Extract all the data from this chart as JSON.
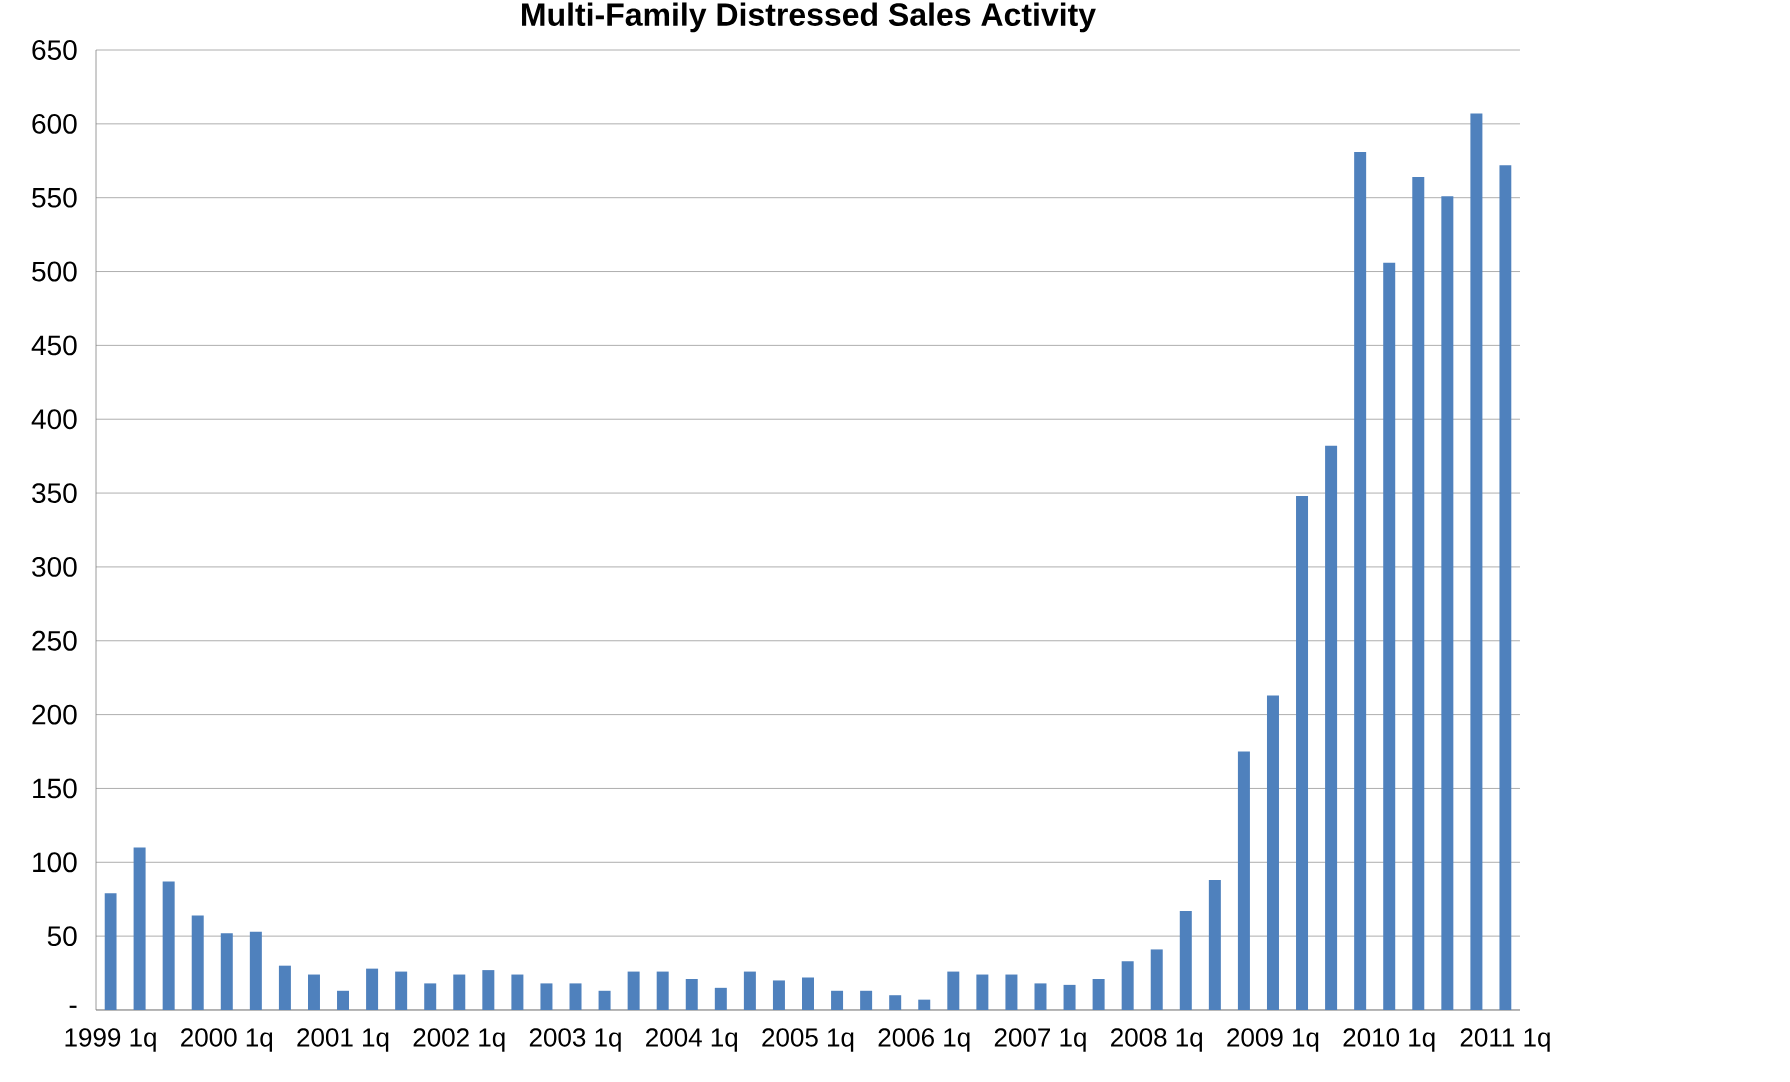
{
  "chart_data": {
    "type": "bar",
    "title": "Multi-Family Distressed Sales Activity",
    "categories": [
      "1999 1q",
      null,
      null,
      null,
      "2000 1q",
      null,
      null,
      null,
      "2001 1q",
      null,
      null,
      null,
      "2002 1q",
      null,
      null,
      null,
      "2003 1q",
      null,
      null,
      null,
      "2004 1q",
      null,
      null,
      null,
      "2005 1q",
      null,
      null,
      null,
      "2006 1q",
      null,
      null,
      null,
      "2007 1q",
      null,
      null,
      null,
      "2008 1q",
      null,
      null,
      null,
      "2009 1q",
      null,
      null,
      null,
      "2010 1q",
      null,
      null,
      null,
      "2011 1q"
    ],
    "values": [
      79,
      110,
      87,
      64,
      52,
      53,
      30,
      24,
      13,
      28,
      26,
      18,
      24,
      27,
      24,
      18,
      18,
      13,
      26,
      26,
      21,
      15,
      26,
      20,
      22,
      13,
      13,
      10,
      7,
      26,
      24,
      24,
      18,
      17,
      21,
      33,
      41,
      67,
      88,
      175,
      213,
      348,
      382,
      581,
      506,
      564,
      551,
      607,
      572
    ],
    "color": "#4f81bd",
    "ylim": [
      0,
      650
    ],
    "yticks": [
      {
        "value": 0,
        "label": "-"
      },
      50,
      100,
      150,
      200,
      250,
      300,
      350,
      400,
      450,
      500,
      550,
      600,
      650
    ],
    "grid": "y"
  }
}
